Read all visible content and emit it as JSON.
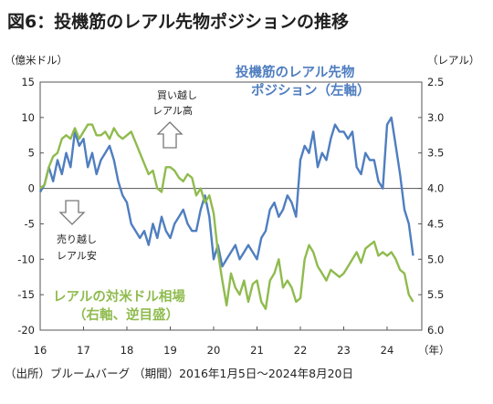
{
  "chart_data": {
    "type": "line",
    "title": "図6：投機筋のレアル先物ポジションの推移",
    "left_axis_unit": "（億米ドル）",
    "right_axis_unit": "（レアル）",
    "x_unit": "（年）",
    "x_ticks": [
      "16",
      "17",
      "18",
      "19",
      "20",
      "21",
      "22",
      "23",
      "24"
    ],
    "left_ticks": [
      "15",
      "10",
      "5",
      "0",
      "-5",
      "-10",
      "-15",
      "-20"
    ],
    "right_ticks": [
      "2.5",
      "3.0",
      "3.5",
      "4.0",
      "4.5",
      "5.0",
      "5.5",
      "6.0"
    ],
    "left_range": [
      -20,
      15
    ],
    "right_range": [
      2.5,
      6.0
    ],
    "right_axis_inverted": true,
    "x_range": [
      2016.0,
      2024.8
    ],
    "annotations": {
      "up_text_1": "買い越し",
      "up_text_2": "レアル高",
      "down_text_1": "売り越し",
      "down_text_2": "レアル安"
    },
    "series": [
      {
        "name": "投機筋のレアル先物ポジション（左軸）",
        "label_line1": "投機筋のレアル先物",
        "label_line2": "ポジション（左軸）",
        "axis": "left",
        "color": "#4f7ec0",
        "x": [
          2016.0,
          2016.1,
          2016.2,
          2016.3,
          2016.4,
          2016.5,
          2016.6,
          2016.7,
          2016.8,
          2016.9,
          2017.0,
          2017.1,
          2017.2,
          2017.3,
          2017.4,
          2017.5,
          2017.6,
          2017.7,
          2017.8,
          2017.9,
          2018.0,
          2018.1,
          2018.2,
          2018.3,
          2018.4,
          2018.5,
          2018.6,
          2018.7,
          2018.8,
          2018.9,
          2019.0,
          2019.1,
          2019.2,
          2019.3,
          2019.4,
          2019.5,
          2019.6,
          2019.7,
          2019.8,
          2019.9,
          2020.0,
          2020.1,
          2020.2,
          2020.3,
          2020.4,
          2020.5,
          2020.6,
          2020.7,
          2020.8,
          2020.9,
          2021.0,
          2021.1,
          2021.2,
          2021.3,
          2021.4,
          2021.5,
          2021.6,
          2021.7,
          2021.8,
          2021.9,
          2022.0,
          2022.1,
          2022.2,
          2022.3,
          2022.4,
          2022.5,
          2022.6,
          2022.7,
          2022.8,
          2022.9,
          2023.0,
          2023.1,
          2023.2,
          2023.3,
          2023.4,
          2023.5,
          2023.6,
          2023.7,
          2023.8,
          2023.9,
          2024.0,
          2024.1,
          2024.2,
          2024.3,
          2024.4,
          2024.5,
          2024.6
        ],
        "values": [
          -0.5,
          0.5,
          3,
          1,
          4,
          2,
          5,
          3,
          8,
          6,
          7,
          3,
          5,
          2,
          4,
          5,
          6,
          4,
          1,
          -1,
          -2,
          -5,
          -6,
          -7,
          -6,
          -8,
          -5,
          -7,
          -4,
          -6,
          -7,
          -5,
          -4,
          -3,
          -5,
          -6,
          -6,
          -3,
          -1,
          -4,
          -10,
          -8,
          -11,
          -10,
          -9,
          -8,
          -10,
          -9,
          -8,
          -9,
          -10,
          -7,
          -6,
          -3,
          -2,
          -4,
          -3,
          -1,
          -2,
          -4,
          4,
          6,
          5,
          8,
          3,
          5,
          4,
          7,
          9,
          8,
          8,
          7,
          8,
          3,
          2,
          5,
          4,
          4,
          1,
          0,
          9,
          10,
          6,
          2,
          -3,
          -5,
          -9.5
        ]
      },
      {
        "name": "レアルの対米ドル相場（右軸、逆目盛）",
        "label_line1": "レアルの対米ドル相場",
        "label_line2": "（右軸、逆目盛）",
        "axis": "right",
        "color": "#8fbb4e",
        "x": [
          2016.0,
          2016.1,
          2016.2,
          2016.3,
          2016.4,
          2016.5,
          2016.6,
          2016.7,
          2016.8,
          2016.9,
          2017.0,
          2017.1,
          2017.2,
          2017.3,
          2017.4,
          2017.5,
          2017.6,
          2017.7,
          2017.8,
          2017.9,
          2018.0,
          2018.1,
          2018.2,
          2018.3,
          2018.4,
          2018.5,
          2018.6,
          2018.7,
          2018.8,
          2018.9,
          2019.0,
          2019.1,
          2019.2,
          2019.3,
          2019.4,
          2019.5,
          2019.6,
          2019.7,
          2019.8,
          2019.9,
          2020.0,
          2020.1,
          2020.2,
          2020.3,
          2020.4,
          2020.5,
          2020.6,
          2020.7,
          2020.8,
          2020.9,
          2021.0,
          2021.1,
          2021.2,
          2021.3,
          2021.4,
          2021.5,
          2021.6,
          2021.7,
          2021.8,
          2021.9,
          2022.0,
          2022.1,
          2022.2,
          2022.3,
          2022.4,
          2022.5,
          2022.6,
          2022.7,
          2022.8,
          2022.9,
          2023.0,
          2023.1,
          2023.2,
          2023.3,
          2023.4,
          2023.5,
          2023.6,
          2023.7,
          2023.8,
          2023.9,
          2024.0,
          2024.1,
          2024.2,
          2024.3,
          2024.4,
          2024.5,
          2024.6
        ],
        "values": [
          4.0,
          3.95,
          3.7,
          3.55,
          3.5,
          3.3,
          3.25,
          3.3,
          3.15,
          3.3,
          3.2,
          3.1,
          3.1,
          3.25,
          3.25,
          3.2,
          3.3,
          3.15,
          3.25,
          3.3,
          3.25,
          3.2,
          3.35,
          3.5,
          3.65,
          3.8,
          3.75,
          4.0,
          4.05,
          3.7,
          3.7,
          3.75,
          3.85,
          3.9,
          3.8,
          3.85,
          4.1,
          4.0,
          4.2,
          4.1,
          4.35,
          4.9,
          5.3,
          5.65,
          5.2,
          5.4,
          5.5,
          5.3,
          5.6,
          5.35,
          5.3,
          5.6,
          5.7,
          5.3,
          5.2,
          5.0,
          5.4,
          5.3,
          5.4,
          5.6,
          5.55,
          5.0,
          4.8,
          4.9,
          5.1,
          5.2,
          5.3,
          5.15,
          5.2,
          5.25,
          5.2,
          5.1,
          5.0,
          4.9,
          5.05,
          4.85,
          4.8,
          4.75,
          4.95,
          4.9,
          4.95,
          4.9,
          5.0,
          5.15,
          5.2,
          5.5,
          5.6
        ]
      }
    ],
    "grid": false
  },
  "source": "（出所）ブルームバーグ （期間）2016年1月5日～2024年8月20日"
}
